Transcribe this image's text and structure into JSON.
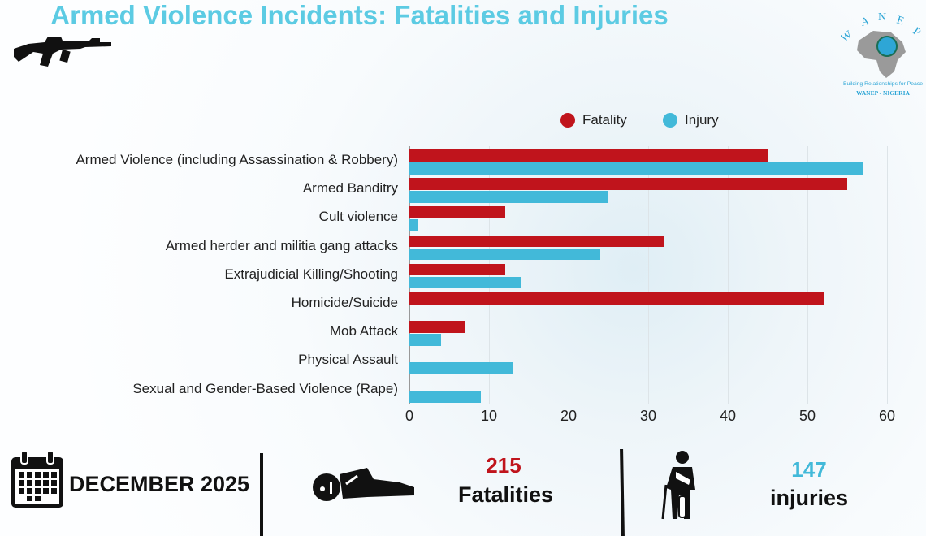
{
  "title": "Armed Violence Incidents: Fatalities and Injuries",
  "logo": {
    "text": "WANEP",
    "tagline": "Building Relationships for Peace",
    "org": "WANEP - NIGERIA"
  },
  "colors": {
    "fatality": "#c0141c",
    "injury": "#42b9d9",
    "title": "#5ccbe3"
  },
  "chart_data": {
    "type": "bar",
    "orientation": "horizontal",
    "categories": [
      "Armed Violence (including Assassination & Robbery)",
      "Armed Banditry",
      "Cult violence",
      "Armed herder and militia gang attacks",
      "Extrajudicial Killing/Shooting",
      "Homicide/Suicide",
      "Mob Attack",
      "Physical Assault",
      "Sexual and Gender-Based Violence (Rape)"
    ],
    "series": [
      {
        "name": "Fatality",
        "values": [
          45,
          55,
          12,
          32,
          12,
          52,
          7,
          0,
          0
        ]
      },
      {
        "name": "Injury",
        "values": [
          57,
          25,
          1,
          24,
          14,
          0,
          4,
          13,
          9
        ]
      }
    ],
    "xlim": [
      0,
      60
    ],
    "xticks": [
      "0",
      "10",
      "20",
      "30",
      "40",
      "50",
      "60"
    ],
    "grid": true,
    "legend": "top"
  },
  "footer": {
    "period": "DECEMBER 2025",
    "fatalities_count": "215",
    "fatalities_label": "Fatalities",
    "injuries_count": "147",
    "injuries_label": "injuries"
  }
}
